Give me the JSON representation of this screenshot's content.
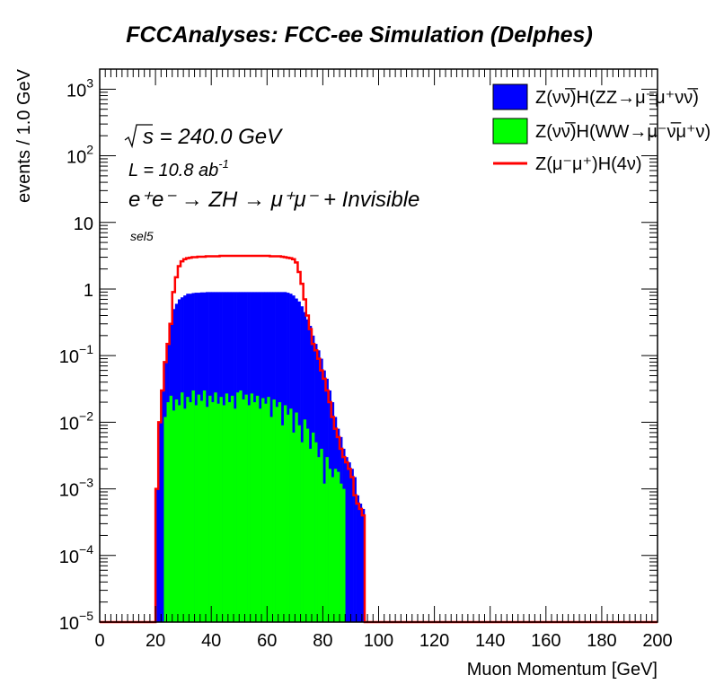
{
  "chart_data": {
    "type": "histogram",
    "title": "FCCAnalyses: FCC-ee Simulation (Delphes)",
    "xlabel": "Muon Momentum [GeV]",
    "ylabel": "events / 1.0 GeV",
    "xlim": [
      0,
      200
    ],
    "ylim": [
      1e-05,
      2000
    ],
    "y_scale": "log",
    "x_ticks": [
      "0",
      "20",
      "40",
      "60",
      "80",
      "100",
      "120",
      "140",
      "160",
      "180",
      "200"
    ],
    "y_ticks": [
      {
        "value": 1000,
        "base": "10",
        "exp": "3"
      },
      {
        "value": 100,
        "base": "10",
        "exp": "2"
      },
      {
        "value": 10,
        "base": "10",
        "exp": ""
      },
      {
        "value": 1,
        "base": "1",
        "exp": ""
      },
      {
        "value": 0.1,
        "base": "10",
        "exp": "−1"
      },
      {
        "value": 0.01,
        "base": "10",
        "exp": "−2"
      },
      {
        "value": 0.001,
        "base": "10",
        "exp": "−3"
      },
      {
        "value": 0.0001,
        "base": "10",
        "exp": "−4"
      },
      {
        "value": 1e-05,
        "base": "10",
        "exp": "−5"
      }
    ],
    "annotations": {
      "sqrt_s": "s = 240.0 GeV",
      "lumi": "L = 10.8 ab",
      "lumi_exp": "-1",
      "process": "e⁺e⁻ → ZH → μ⁺μ⁻ + Invisible",
      "selection": "sel5"
    },
    "legend": {
      "position": "top-right",
      "entries": [
        {
          "label": "Z(νν̅)H(ZZ→μ⁻μ⁺νν̅)",
          "style": "fill",
          "color": "#0000ff"
        },
        {
          "label": "Z(νν̅)H(WW→μ⁻ν̅μ⁺ν)",
          "style": "fill",
          "color": "#00ff00"
        },
        {
          "label": "Z(μ⁻μ⁺)H(4ν)",
          "style": "line",
          "color": "#ff0000"
        }
      ]
    },
    "bin_width": 1.0,
    "series": [
      {
        "name": "Z(νν̅)H(WW→μ⁻ν̅μ⁺ν)",
        "color": "#00ff00",
        "stack_order": 1,
        "x_range": [
          23,
          88
        ],
        "values": [
          0.012,
          0.02,
          0.025,
          0.015,
          0.022,
          0.018,
          0.028,
          0.016,
          0.024,
          0.02,
          0.03,
          0.018,
          0.026,
          0.021,
          0.03,
          0.017,
          0.025,
          0.02,
          0.028,
          0.019,
          0.024,
          0.018,
          0.027,
          0.02,
          0.025,
          0.016,
          0.028,
          0.03,
          0.022,
          0.026,
          0.018,
          0.027,
          0.02,
          0.025,
          0.016,
          0.023,
          0.019,
          0.024,
          0.012,
          0.022,
          0.017,
          0.02,
          0.009,
          0.018,
          0.013,
          0.016,
          0.007,
          0.014,
          0.009,
          0.005,
          0.011,
          0.008,
          0.004,
          0.007,
          0.005,
          0.003,
          0.004,
          0.0012,
          0.003,
          0.002,
          0.0015,
          0.002,
          0.0018,
          0.0012,
          0.001
        ]
      },
      {
        "name": "Z(νν̅)H(ZZ→μ⁻μ⁺νν̅)",
        "color": "#0000ff",
        "stack_order": 2,
        "stacked_total_x_range": [
          20,
          95
        ],
        "stacked_total": [
          0.001,
          0.01,
          0.03,
          0.08,
          0.15,
          0.3,
          0.5,
          0.6,
          0.7,
          0.75,
          0.8,
          0.85,
          0.85,
          0.87,
          0.88,
          0.88,
          0.89,
          0.89,
          0.9,
          0.9,
          0.9,
          0.9,
          0.9,
          0.9,
          0.9,
          0.9,
          0.9,
          0.9,
          0.9,
          0.9,
          0.9,
          0.9,
          0.9,
          0.9,
          0.9,
          0.9,
          0.9,
          0.9,
          0.9,
          0.9,
          0.9,
          0.9,
          0.9,
          0.9,
          0.9,
          0.9,
          0.9,
          0.88,
          0.85,
          0.8,
          0.72,
          0.65,
          0.55,
          0.45,
          0.35,
          0.28,
          0.2,
          0.15,
          0.12,
          0.09,
          0.06,
          0.045,
          0.03,
          0.02,
          0.012,
          0.008,
          0.006,
          0.004,
          0.003,
          0.0025,
          0.002,
          0.0015,
          0.0008,
          0.0006,
          0.0005
        ]
      },
      {
        "name": "Z(μ⁻μ⁺)H(4ν)",
        "color": "#ff0000",
        "style": "line",
        "x_range": [
          20,
          95
        ],
        "values": [
          0.001,
          0.01,
          0.03,
          0.08,
          0.15,
          0.3,
          0.9,
          1.5,
          2.2,
          2.6,
          2.8,
          2.9,
          2.95,
          3.0,
          3.0,
          3.05,
          3.05,
          3.05,
          3.1,
          3.1,
          3.1,
          3.1,
          3.1,
          3.15,
          3.15,
          3.15,
          3.15,
          3.15,
          3.15,
          3.15,
          3.15,
          3.15,
          3.15,
          3.15,
          3.15,
          3.15,
          3.15,
          3.15,
          3.15,
          3.15,
          3.15,
          3.1,
          3.1,
          3.1,
          3.1,
          3.05,
          3.0,
          2.95,
          2.9,
          2.8,
          2.5,
          1.8,
          1.2,
          0.7,
          0.4,
          0.25,
          0.15,
          0.12,
          0.09,
          0.06,
          0.045,
          0.03,
          0.02,
          0.012,
          0.008,
          0.006,
          0.004,
          0.003,
          0.0025,
          0.002,
          0.0015,
          0.0008,
          0.0006,
          0.0005,
          0.0004
        ],
        "floor_value": 8.5e-06
      }
    ]
  }
}
